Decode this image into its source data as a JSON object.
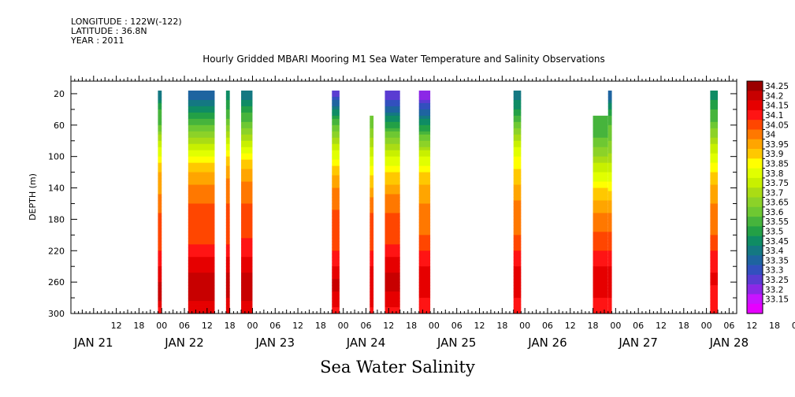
{
  "header": {
    "longitude": "LONGITUDE : 122W(-122)",
    "latitude": "LATITUDE : 36.8N",
    "year": "YEAR : 2011"
  },
  "chart_data": {
    "type": "heatmap",
    "title": "Hourly Gridded MBARI Mooring M1 Sea Water Temperature and Salinity Observations",
    "bottom_label": "Sea Water Salinity",
    "ylabel": "DEPTH (m)",
    "y_ticks": [
      20,
      60,
      100,
      140,
      180,
      220,
      260,
      300
    ],
    "ylim": [
      300,
      4
    ],
    "xlim_hours": [
      0,
      176
    ],
    "x_hour_ticks": [
      "12",
      "18",
      "00",
      "06",
      "12",
      "18",
      "00",
      "06",
      "12",
      "18",
      "00",
      "06",
      "12",
      "18",
      "00",
      "06",
      "12",
      "18",
      "00",
      "06",
      "12",
      "18",
      "00",
      "06",
      "12",
      "18",
      "00",
      "06",
      "12",
      "18",
      "00",
      "06"
    ],
    "x_day_labels": [
      "JAN 21",
      "JAN 22",
      "JAN 23",
      "JAN 24",
      "JAN 25",
      "JAN 26",
      "JAN 27",
      "JAN 28"
    ],
    "colorbar_levels": [
      "34.25",
      "34.2",
      "34.15",
      "34.1",
      "34.05",
      "34",
      "33.95",
      "33.9",
      "33.85",
      "33.8",
      "33.75",
      "33.7",
      "33.65",
      "33.6",
      "33.55",
      "33.5",
      "33.45",
      "33.4",
      "33.35",
      "33.3",
      "33.25",
      "33.2",
      "33.15"
    ],
    "colors": [
      "#9b0000",
      "#c80000",
      "#e60000",
      "#ff1414",
      "#ff4600",
      "#ff7800",
      "#ffa500",
      "#ffc800",
      "#ffff00",
      "#e1ff00",
      "#c8f000",
      "#aadc14",
      "#8cd228",
      "#6ec832",
      "#46b43c",
      "#23a046",
      "#0f8c64",
      "#147882",
      "#1e64a0",
      "#3250be",
      "#5a3cd2",
      "#8c28e6",
      "#c814ff",
      "#e600ff"
    ],
    "depths_m": [
      20,
      40,
      60,
      80,
      100,
      120,
      140,
      160,
      180,
      200,
      220,
      240,
      260,
      280,
      300
    ],
    "segments": [
      {
        "start_hour": 23,
        "end_hour": 24,
        "values": [
          33.4,
          33.55,
          33.6,
          33.75,
          33.85,
          33.95,
          33.98,
          34.03,
          34.06,
          34.07,
          34.1,
          34.15,
          34.2,
          34.22,
          34.1
        ]
      },
      {
        "start_hour": 31,
        "end_hour": 38,
        "values": [
          33.35,
          33.47,
          33.6,
          33.72,
          33.85,
          33.95,
          34.02,
          34.05,
          34.06,
          34.08,
          34.12,
          34.18,
          34.24,
          34.22,
          34.15
        ]
      },
      {
        "start_hour": 41,
        "end_hour": 42,
        "values": [
          33.45,
          33.55,
          33.65,
          33.78,
          33.9,
          33.98,
          34.03,
          34.05,
          34.06,
          34.08,
          34.12,
          34.18,
          34.22,
          34.2,
          34.15
        ]
      },
      {
        "start_hour": 45,
        "end_hour": 48,
        "values": [
          33.4,
          33.52,
          33.62,
          33.75,
          33.88,
          33.96,
          34.02,
          34.05,
          34.07,
          34.09,
          34.13,
          34.18,
          34.22,
          34.22,
          34.15
        ]
      },
      {
        "start_hour": 69,
        "end_hour": 71,
        "values": [
          33.25,
          33.45,
          33.6,
          33.72,
          33.84,
          33.93,
          34.0,
          34.04,
          34.06,
          34.08,
          34.1,
          34.15,
          34.22,
          34.18,
          34.12
        ]
      },
      {
        "start_hour": 79,
        "end_hour": 80,
        "values": [
          null,
          null,
          33.62,
          33.72,
          33.8,
          33.88,
          33.95,
          34.03,
          34.06,
          34.08,
          34.1,
          34.15,
          34.2,
          34.18,
          34.12
        ]
      },
      {
        "start_hour": 83,
        "end_hour": 87,
        "values": [
          33.25,
          33.38,
          33.52,
          33.68,
          33.8,
          33.9,
          33.97,
          34.03,
          34.06,
          34.08,
          34.12,
          34.18,
          34.22,
          34.18,
          34.12
        ]
      },
      {
        "start_hour": 92,
        "end_hour": 95,
        "values": [
          33.2,
          33.35,
          33.5,
          33.65,
          33.8,
          33.9,
          33.96,
          34.0,
          34.01,
          34.05,
          34.1,
          34.15,
          34.2,
          34.15,
          34.12
        ]
      },
      {
        "start_hour": 117,
        "end_hour": 119,
        "values": [
          33.4,
          33.5,
          33.62,
          33.75,
          33.85,
          33.92,
          33.96,
          34.01,
          34.02,
          34.05,
          34.1,
          34.15,
          34.18,
          34.15,
          34.12
        ]
      },
      {
        "start_hour": 138,
        "end_hour": 142,
        "values": [
          null,
          null,
          33.55,
          33.62,
          33.7,
          33.8,
          33.9,
          33.97,
          34.02,
          34.06,
          34.1,
          34.15,
          34.18,
          34.15,
          34.12
        ]
      },
      {
        "start_hour": 142,
        "end_hour": 143,
        "values": [
          33.35,
          33.5,
          33.6,
          33.65,
          33.72,
          33.8,
          33.88,
          33.96,
          34.02,
          34.06,
          34.1,
          34.15,
          34.18,
          34.15,
          34.12
        ]
      },
      {
        "start_hour": 169,
        "end_hour": 171,
        "values": [
          33.45,
          33.55,
          33.62,
          33.72,
          33.82,
          33.9,
          33.96,
          34.0,
          34.01,
          34.05,
          34.1,
          34.14,
          34.16,
          34.12,
          34.1
        ]
      }
    ]
  }
}
